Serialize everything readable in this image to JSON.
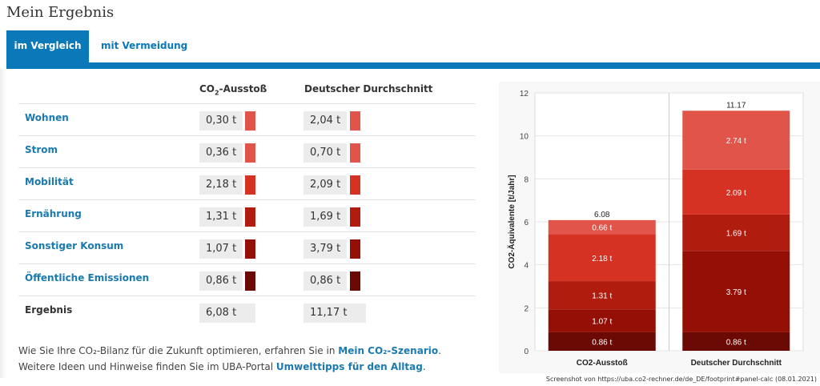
{
  "page_title": "Mein Ergebnis",
  "tabs": [
    {
      "label": "im Vergleich",
      "active": true
    },
    {
      "label": "mit Vermeidung",
      "active": false
    }
  ],
  "table": {
    "headers": {
      "col1_prefix": "CO",
      "col1_sub": "2",
      "col1_suffix": "-Ausstoß",
      "col2": "Deutscher Durchschnitt"
    },
    "rows": [
      {
        "label": "Wohnen",
        "value": "0,30 t",
        "avg": "2,04 t",
        "color": "#e05449"
      },
      {
        "label": "Strom",
        "value": "0,36 t",
        "avg": "0,70 t",
        "color": "#e05449"
      },
      {
        "label": "Mobilität",
        "value": "2,18 t",
        "avg": "2,09 t",
        "color": "#d63224"
      },
      {
        "label": "Ernährung",
        "value": "1,31 t",
        "avg": "1,69 t",
        "color": "#b01c0e"
      },
      {
        "label": "Sonstiger Konsum",
        "value": "1,07 t",
        "avg": "3,79 t",
        "color": "#941006"
      },
      {
        "label": "Öffentliche Emissionen",
        "value": "0,86 t",
        "avg": "0,86 t",
        "color": "#6b0904"
      }
    ],
    "total": {
      "label": "Ergebnis",
      "value": "6,08 t",
      "avg": "11,17 t"
    }
  },
  "footer": {
    "line1_text": "Wie Sie Ihre CO₂-Bilanz für die Zukunft optimieren, erfahren Sie in ",
    "line1_link": "Mein CO₂-Szenario",
    "line1_end": ".",
    "line2_text": "Weitere Ideen und Hinweise finden Sie im UBA-Portal ",
    "line2_link": "Umwelttipps für den Alltag",
    "line2_end": "."
  },
  "caption": "Screenshot von https://uba.co2-rechner.de/de_DE/footprint#panel-calc (08.01.2021)",
  "chart_data": {
    "type": "bar",
    "stacked": true,
    "categories": [
      "CO2-Ausstoß",
      "Deutscher Durchschnitt"
    ],
    "ylabel": "CO2-Äquivalente [t/Jahr]",
    "ylim": [
      0,
      12
    ],
    "yticks": [
      0,
      2,
      4,
      6,
      8,
      10,
      12
    ],
    "totals": [
      "6.08",
      "11.17"
    ],
    "series": [
      {
        "name": "Öffentliche Emissionen",
        "color": "#6b0904",
        "values": [
          0.86,
          0.86
        ],
        "labels": [
          "0.86 t",
          "0.86 t"
        ]
      },
      {
        "name": "Sonstiger Konsum",
        "color": "#941006",
        "values": [
          1.07,
          3.79
        ],
        "labels": [
          "1.07 t",
          "3.79 t"
        ]
      },
      {
        "name": "Ernährung",
        "color": "#b01c0e",
        "values": [
          1.31,
          1.69
        ],
        "labels": [
          "1.31 t",
          "1.69 t"
        ]
      },
      {
        "name": "Mobilität",
        "color": "#d63224",
        "values": [
          2.18,
          2.09
        ],
        "labels": [
          "2.18 t",
          "2.09 t"
        ]
      },
      {
        "name": "Wohnen + Strom",
        "color": "#e05449",
        "values": [
          0.66,
          2.74
        ],
        "labels": [
          "0.66 t",
          "2.74 t"
        ]
      }
    ]
  }
}
